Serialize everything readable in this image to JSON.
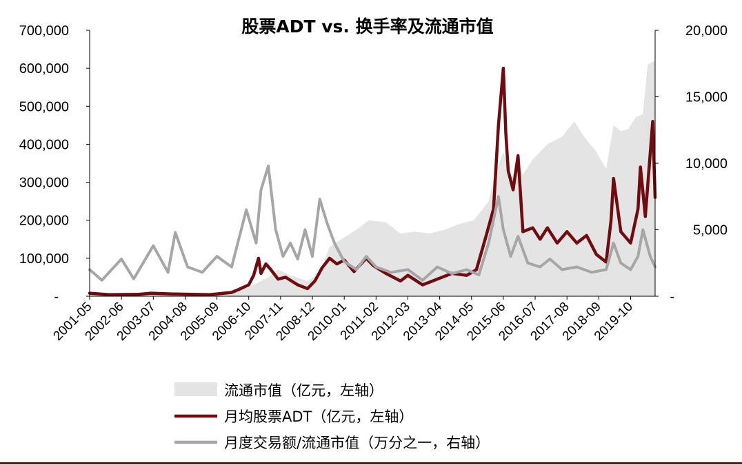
{
  "chart_data": {
    "type": "line",
    "title": "股票ADT vs. 换手率及流通市值",
    "x_ticks": [
      "2001-05",
      "2002-06",
      "2003-07",
      "2004-08",
      "2005-09",
      "2006-10",
      "2007-11",
      "2008-12",
      "2010-01",
      "2011-02",
      "2012-03",
      "2013-04",
      "2014-05",
      "2015-06",
      "2016-07",
      "2017-08",
      "2018-09",
      "2019-10"
    ],
    "y_left": {
      "ylim": [
        0,
        700000
      ],
      "ticks": [
        0,
        100000,
        200000,
        300000,
        400000,
        500000,
        600000,
        700000
      ],
      "tick_labels": [
        "-",
        "100,000",
        "200,000",
        "300,000",
        "400,000",
        "500,000",
        "600,000",
        "700,000"
      ]
    },
    "y_right": {
      "ylim": [
        0,
        20000
      ],
      "ticks": [
        0,
        5000,
        10000,
        15000,
        20000
      ],
      "tick_labels": [
        "-",
        "5,000",
        "10,000",
        "15,000",
        "20,000"
      ]
    },
    "x_start": "2001-05",
    "x_end": "2020-08",
    "legend": {
      "placement": "bottom"
    },
    "series": [
      {
        "name": "流通市值（亿元，左轴）",
        "axis": "left",
        "style": "area",
        "color": "#e4e4e4",
        "points": [
          [
            "2001-05",
            8000
          ],
          [
            "2003-01",
            9000
          ],
          [
            "2005-06",
            8500
          ],
          [
            "2006-06",
            14000
          ],
          [
            "2006-12",
            30000
          ],
          [
            "2007-06",
            50000
          ],
          [
            "2007-10",
            70000
          ],
          [
            "2008-03",
            55000
          ],
          [
            "2008-10",
            40000
          ],
          [
            "2009-03",
            60000
          ],
          [
            "2009-07",
            130000
          ],
          [
            "2010-06",
            175000
          ],
          [
            "2010-11",
            200000
          ],
          [
            "2011-06",
            195000
          ],
          [
            "2011-12",
            165000
          ],
          [
            "2012-06",
            170000
          ],
          [
            "2012-12",
            165000
          ],
          [
            "2013-06",
            175000
          ],
          [
            "2013-12",
            190000
          ],
          [
            "2014-06",
            200000
          ],
          [
            "2014-12",
            250000
          ],
          [
            "2015-02",
            310000
          ],
          [
            "2015-06",
            380000
          ],
          [
            "2015-09",
            310000
          ],
          [
            "2015-12",
            340000
          ],
          [
            "2016-02",
            320000
          ],
          [
            "2016-06",
            360000
          ],
          [
            "2016-12",
            400000
          ],
          [
            "2017-06",
            420000
          ],
          [
            "2017-11",
            460000
          ],
          [
            "2018-03",
            420000
          ],
          [
            "2018-08",
            380000
          ],
          [
            "2018-12",
            335000
          ],
          [
            "2019-03",
            450000
          ],
          [
            "2019-06",
            435000
          ],
          [
            "2019-09",
            440000
          ],
          [
            "2019-12",
            470000
          ],
          [
            "2020-03",
            480000
          ],
          [
            "2020-05",
            610000
          ],
          [
            "2020-08",
            620000
          ]
        ]
      },
      {
        "name": "月均股票ADT（亿元，左轴）",
        "axis": "left",
        "style": "line",
        "color": "#700c10",
        "points": [
          [
            "2001-05",
            8000
          ],
          [
            "2002-01",
            4000
          ],
          [
            "2003-01",
            5000
          ],
          [
            "2003-06",
            8000
          ],
          [
            "2004-03",
            6000
          ],
          [
            "2005-06",
            4000
          ],
          [
            "2006-03",
            10000
          ],
          [
            "2006-06",
            18000
          ],
          [
            "2006-10",
            30000
          ],
          [
            "2006-12",
            55000
          ],
          [
            "2007-02",
            100000
          ],
          [
            "2007-03",
            60000
          ],
          [
            "2007-05",
            85000
          ],
          [
            "2007-07",
            70000
          ],
          [
            "2007-10",
            45000
          ],
          [
            "2008-01",
            50000
          ],
          [
            "2008-06",
            30000
          ],
          [
            "2008-10",
            20000
          ],
          [
            "2009-01",
            40000
          ],
          [
            "2009-04",
            75000
          ],
          [
            "2009-07",
            100000
          ],
          [
            "2009-10",
            85000
          ],
          [
            "2010-01",
            95000
          ],
          [
            "2010-05",
            65000
          ],
          [
            "2010-10",
            100000
          ],
          [
            "2011-01",
            80000
          ],
          [
            "2011-06",
            60000
          ],
          [
            "2011-12",
            40000
          ],
          [
            "2012-03",
            55000
          ],
          [
            "2012-09",
            30000
          ],
          [
            "2013-03",
            45000
          ],
          [
            "2013-09",
            60000
          ],
          [
            "2014-03",
            55000
          ],
          [
            "2014-07",
            70000
          ],
          [
            "2014-11",
            160000
          ],
          [
            "2015-02",
            230000
          ],
          [
            "2015-04",
            450000
          ],
          [
            "2015-06",
            600000
          ],
          [
            "2015-07",
            430000
          ],
          [
            "2015-08",
            330000
          ],
          [
            "2015-10",
            280000
          ],
          [
            "2015-12",
            370000
          ],
          [
            "2016-02",
            170000
          ],
          [
            "2016-06",
            180000
          ],
          [
            "2016-09",
            150000
          ],
          [
            "2016-12",
            180000
          ],
          [
            "2017-04",
            140000
          ],
          [
            "2017-08",
            170000
          ],
          [
            "2017-12",
            140000
          ],
          [
            "2018-04",
            160000
          ],
          [
            "2018-08",
            110000
          ],
          [
            "2018-12",
            90000
          ],
          [
            "2019-02",
            200000
          ],
          [
            "2019-03",
            310000
          ],
          [
            "2019-06",
            170000
          ],
          [
            "2019-10",
            140000
          ],
          [
            "2020-01",
            230000
          ],
          [
            "2020-02",
            340000
          ],
          [
            "2020-04",
            210000
          ],
          [
            "2020-07",
            460000
          ],
          [
            "2020-08",
            260000
          ]
        ]
      },
      {
        "name": "月度交易额/流通市值（万分之一，右轴）",
        "axis": "right",
        "style": "line",
        "color": "#a6a6a6",
        "points": [
          [
            "2001-05",
            2000
          ],
          [
            "2001-10",
            1200
          ],
          [
            "2002-06",
            2800
          ],
          [
            "2002-11",
            1300
          ],
          [
            "2003-07",
            3800
          ],
          [
            "2004-01",
            1800
          ],
          [
            "2004-04",
            4800
          ],
          [
            "2004-09",
            2200
          ],
          [
            "2005-03",
            1800
          ],
          [
            "2005-09",
            3000
          ],
          [
            "2006-03",
            2200
          ],
          [
            "2006-09",
            6500
          ],
          [
            "2007-01",
            4000
          ],
          [
            "2007-03",
            8000
          ],
          [
            "2007-06",
            9800
          ],
          [
            "2007-09",
            5000
          ],
          [
            "2007-12",
            3000
          ],
          [
            "2008-03",
            4000
          ],
          [
            "2008-06",
            2800
          ],
          [
            "2008-09",
            5000
          ],
          [
            "2008-12",
            3000
          ],
          [
            "2009-03",
            7300
          ],
          [
            "2009-06",
            5500
          ],
          [
            "2009-09",
            4000
          ],
          [
            "2010-01",
            2600
          ],
          [
            "2010-06",
            2000
          ],
          [
            "2010-10",
            3000
          ],
          [
            "2011-02",
            2200
          ],
          [
            "2011-08",
            1800
          ],
          [
            "2012-03",
            2000
          ],
          [
            "2012-09",
            1200
          ],
          [
            "2013-03",
            2200
          ],
          [
            "2013-09",
            1700
          ],
          [
            "2014-03",
            2000
          ],
          [
            "2014-08",
            1600
          ],
          [
            "2014-12",
            4000
          ],
          [
            "2015-04",
            7500
          ],
          [
            "2015-06",
            5000
          ],
          [
            "2015-09",
            3000
          ],
          [
            "2015-12",
            4500
          ],
          [
            "2016-04",
            2500
          ],
          [
            "2016-09",
            2200
          ],
          [
            "2017-01",
            2800
          ],
          [
            "2017-06",
            2000
          ],
          [
            "2017-12",
            2200
          ],
          [
            "2018-06",
            1800
          ],
          [
            "2018-12",
            2000
          ],
          [
            "2019-03",
            4000
          ],
          [
            "2019-06",
            2500
          ],
          [
            "2019-10",
            2000
          ],
          [
            "2020-01",
            3000
          ],
          [
            "2020-03",
            5000
          ],
          [
            "2020-06",
            3000
          ],
          [
            "2020-08",
            2200
          ]
        ]
      }
    ]
  }
}
